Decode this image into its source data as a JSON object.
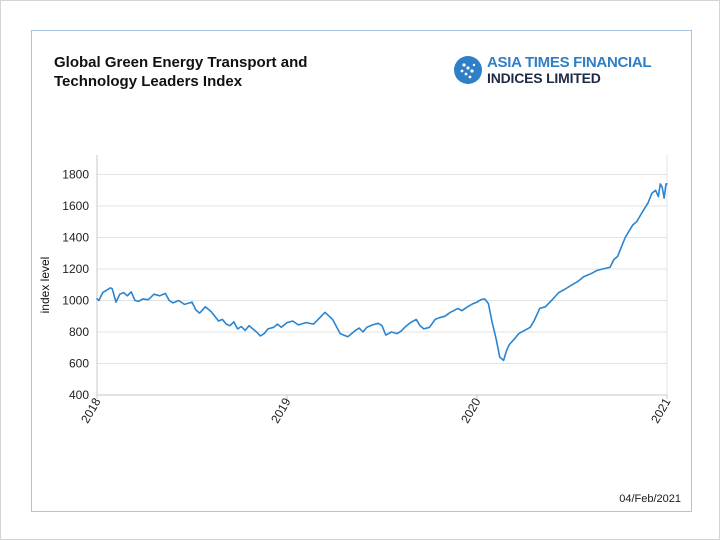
{
  "header": {
    "title_line1": "Global Green Energy Transport and",
    "title_line2": "Technology Leaders Index"
  },
  "logo": {
    "line1": "ASIA TIMES FINANCIAL",
    "line2": "INDICES LIMITED",
    "icon": "asia-times-globe-icon",
    "colors": {
      "primary": "#2f7fc7",
      "secondary": "#1f2a44"
    }
  },
  "footer": {
    "date": "04/Feb/2021"
  },
  "chart_data": {
    "type": "line",
    "title": "Global Green Energy Transport and Technology Leaders Index",
    "xlabel": "",
    "ylabel": "index level",
    "ylim": [
      400,
      1850
    ],
    "xlim": [
      2018.0,
      2021.0
    ],
    "yticks": [
      400,
      600,
      800,
      1000,
      1200,
      1400,
      1600,
      1800
    ],
    "xticks": [
      {
        "value": 2018.0,
        "label": "2018"
      },
      {
        "value": 2019.0,
        "label": "2019"
      },
      {
        "value": 2020.0,
        "label": "2020"
      },
      {
        "value": 2021.0,
        "label": "2021"
      }
    ],
    "grid": "horizontal",
    "line_color": "#2b84cf",
    "series": [
      {
        "x": [
          2018.0,
          2018.01,
          2018.03,
          2018.05,
          2018.07,
          2018.08,
          2018.1,
          2018.12,
          2018.14,
          2018.16,
          2018.18,
          2018.2,
          2018.22,
          2018.24,
          2018.27,
          2018.3,
          2018.33,
          2018.36,
          2018.38,
          2018.4,
          2018.43,
          2018.46,
          2018.5,
          2018.52,
          2018.54,
          2018.57,
          2018.6,
          2018.62,
          2018.64,
          2018.66,
          2018.68,
          2018.7,
          2018.72,
          2018.74,
          2018.76,
          2018.78,
          2018.8,
          2018.82,
          2018.84,
          2018.86,
          2018.88,
          2018.9,
          2018.93,
          2018.95,
          2018.97,
          2019.0,
          2019.03,
          2019.06,
          2019.1,
          2019.14,
          2019.18,
          2019.2,
          2019.24,
          2019.28,
          2019.32,
          2019.34,
          2019.36,
          2019.38,
          2019.4,
          2019.42,
          2019.45,
          2019.48,
          2019.5,
          2019.52,
          2019.55,
          2019.58,
          2019.6,
          2019.62,
          2019.65,
          2019.68,
          2019.7,
          2019.72,
          2019.75,
          2019.78,
          2019.8,
          2019.83,
          2019.86,
          2019.9,
          2019.92,
          2019.95,
          2019.98,
          2020.0,
          2020.02,
          2020.04,
          2020.06,
          2020.08,
          2020.1,
          2020.12,
          2020.14,
          2020.155,
          2020.17,
          2020.2,
          2020.22,
          2020.25,
          2020.28,
          2020.3,
          2020.33,
          2020.36,
          2020.4,
          2020.43,
          2020.46,
          2020.5,
          2020.53,
          2020.56,
          2020.6,
          2020.63,
          2020.66,
          2020.7,
          2020.72,
          2020.74,
          2020.76,
          2020.78,
          2020.8,
          2020.82,
          2020.84,
          2020.86,
          2020.88,
          2020.9,
          2020.92,
          2020.94,
          2020.955,
          2020.965,
          2020.975,
          2020.985,
          2020.995,
          2021.0
        ],
        "values": [
          1010,
          1000,
          1050,
          1065,
          1080,
          1075,
          990,
          1040,
          1050,
          1030,
          1055,
          1000,
          995,
          1010,
          1005,
          1040,
          1030,
          1045,
          1000,
          985,
          1000,
          975,
          990,
          940,
          920,
          960,
          930,
          900,
          870,
          880,
          850,
          840,
          865,
          820,
          835,
          810,
          840,
          820,
          800,
          775,
          790,
          820,
          830,
          850,
          830,
          860,
          870,
          845,
          860,
          850,
          900,
          925,
          880,
          790,
          770,
          790,
          810,
          825,
          800,
          830,
          845,
          855,
          840,
          780,
          800,
          790,
          805,
          830,
          860,
          880,
          840,
          820,
          830,
          880,
          890,
          900,
          925,
          950,
          935,
          960,
          980,
          990,
          1005,
          1010,
          980,
          860,
          760,
          640,
          620,
          680,
          720,
          760,
          790,
          810,
          830,
          870,
          950,
          960,
          1010,
          1050,
          1070,
          1100,
          1120,
          1150,
          1170,
          1190,
          1200,
          1210,
          1260,
          1280,
          1340,
          1400,
          1440,
          1480,
          1500,
          1540,
          1580,
          1620,
          1680,
          1700,
          1660,
          1740,
          1720,
          1650,
          1740,
          1740
        ]
      }
    ]
  }
}
